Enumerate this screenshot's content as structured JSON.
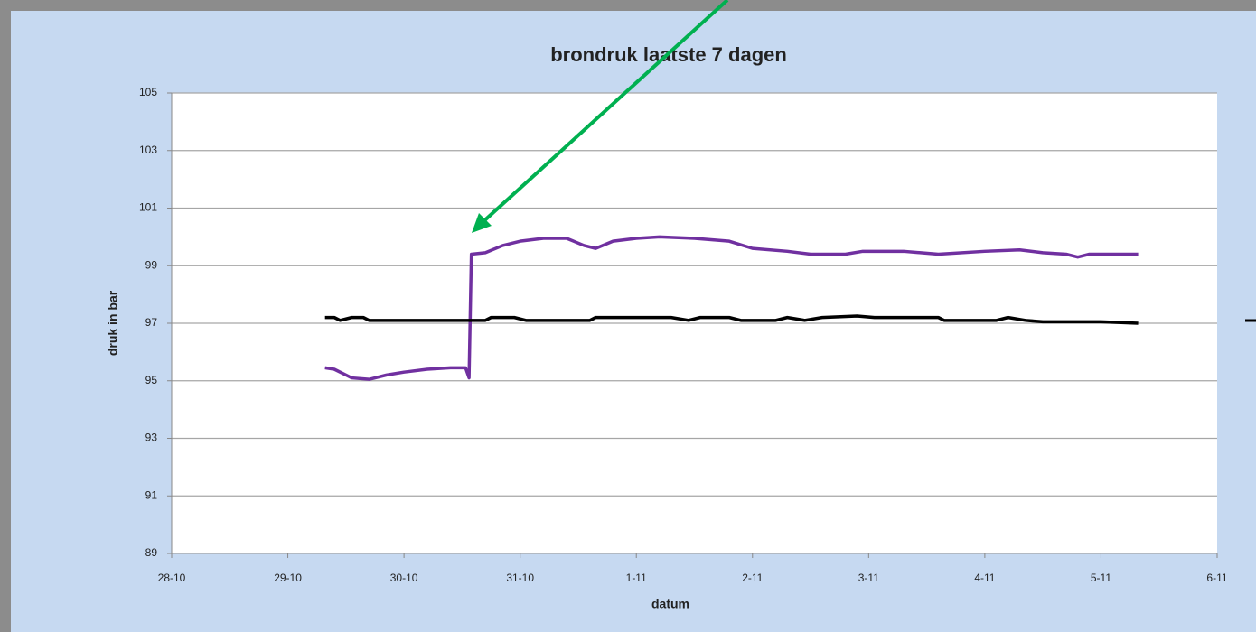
{
  "chart_data": {
    "type": "line",
    "title": "brondruk laatste 7 dagen",
    "x_label": "datum",
    "y_label": "druk in  bar",
    "xlim": [
      0,
      9
    ],
    "xticks": [
      {
        "value": 0,
        "label": "28-10"
      },
      {
        "value": 1,
        "label": "29-10"
      },
      {
        "value": 2,
        "label": "30-10"
      },
      {
        "value": 3,
        "label": "31-10"
      },
      {
        "value": 4,
        "label": "1-11"
      },
      {
        "value": 5,
        "label": "2-11"
      },
      {
        "value": 6,
        "label": "3-11"
      },
      {
        "value": 7,
        "label": "4-11"
      },
      {
        "value": 8,
        "label": "5-11"
      },
      {
        "value": 9,
        "label": "6-11"
      }
    ],
    "ylim": [
      89,
      105
    ],
    "yticks": [
      89,
      91,
      93,
      95,
      97,
      99,
      101,
      103,
      105
    ],
    "grid": true,
    "series": [
      {
        "color": "#7030a0",
        "x": [
          1.32,
          1.4,
          1.55,
          1.7,
          1.85,
          2.0,
          2.2,
          2.4,
          2.53,
          2.56,
          2.58,
          2.7,
          2.85,
          3.0,
          3.2,
          3.4,
          3.55,
          3.65,
          3.8,
          4.0,
          4.2,
          4.5,
          4.8,
          5.0,
          5.3,
          5.5,
          5.8,
          5.95,
          6.3,
          6.6,
          7.0,
          7.3,
          7.5,
          7.7,
          7.8,
          7.9,
          8.32
        ],
        "values": [
          95.45,
          95.4,
          95.1,
          95.05,
          95.2,
          95.3,
          95.4,
          95.45,
          95.45,
          95.1,
          99.4,
          99.45,
          99.7,
          99.85,
          99.95,
          99.95,
          99.7,
          99.6,
          99.85,
          99.95,
          100,
          99.95,
          99.85,
          99.6,
          99.5,
          99.4,
          99.4,
          99.5,
          99.5,
          99.4,
          99.5,
          99.55,
          99.45,
          99.4,
          99.3,
          99.4,
          99.4
        ]
      },
      {
        "color": "#000000",
        "x": [
          1.32,
          1.4,
          1.45,
          1.55,
          1.65,
          1.7,
          2.7,
          2.75,
          2.95,
          3.05,
          3.6,
          3.65,
          4.3,
          4.45,
          4.55,
          4.8,
          4.9,
          5.2,
          5.3,
          5.45,
          5.6,
          5.9,
          6.05,
          6.6,
          6.65,
          7.1,
          7.2,
          7.35,
          7.5,
          8.0,
          8.32
        ],
        "values": [
          97.2,
          97.2,
          97.1,
          97.2,
          97.2,
          97.1,
          97.1,
          97.2,
          97.2,
          97.1,
          97.1,
          97.2,
          97.2,
          97.1,
          97.2,
          97.2,
          97.1,
          97.1,
          97.2,
          97.1,
          97.2,
          97.25,
          97.2,
          97.2,
          97.1,
          97.1,
          97.2,
          97.1,
          97.05,
          97.05,
          97.0
        ]
      }
    ]
  }
}
